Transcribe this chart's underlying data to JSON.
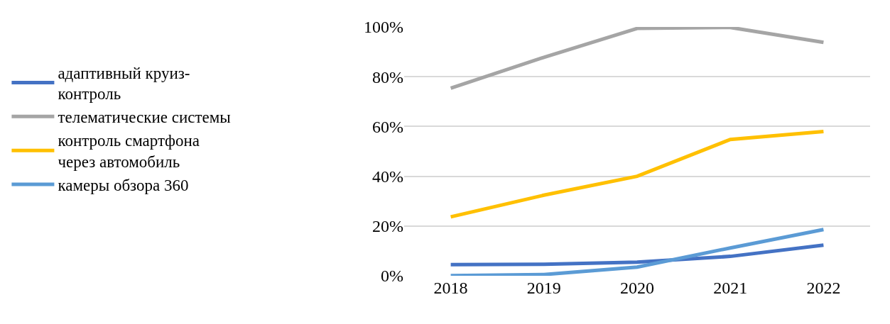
{
  "chart_data": {
    "type": "line",
    "categories": [
      "2018",
      "2019",
      "2020",
      "2021",
      "2022"
    ],
    "series": [
      {
        "name": "адаптивный круиз-контроль",
        "color": "#4472c4",
        "values": [
          4.5,
          4.6,
          5.5,
          7.8,
          12.3
        ]
      },
      {
        "name": "телематические системы",
        "color": "#a5a5a5",
        "values": [
          75.4,
          87.8,
          99.4,
          99.8,
          93.8
        ]
      },
      {
        "name": "контроль смартфона через автомобиль",
        "color": "#ffc000",
        "values": [
          23.7,
          32.4,
          40,
          54.8,
          58
        ]
      },
      {
        "name": "камеры обзора 360",
        "color": "#5b9bd5",
        "values": [
          0.1,
          0.5,
          3.5,
          11.2,
          18.6
        ]
      }
    ],
    "ylim": [
      0,
      100
    ],
    "yticks": [
      {
        "value": 0,
        "label": "0%"
      },
      {
        "value": 20,
        "label": "20%"
      },
      {
        "value": 40,
        "label": "40%"
      },
      {
        "value": 60,
        "label": "60%"
      },
      {
        "value": 80,
        "label": "80%"
      },
      {
        "value": 100,
        "label": "100%"
      }
    ],
    "grid": "y",
    "legend": "left",
    "marker": "none",
    "line_style": "solid"
  }
}
